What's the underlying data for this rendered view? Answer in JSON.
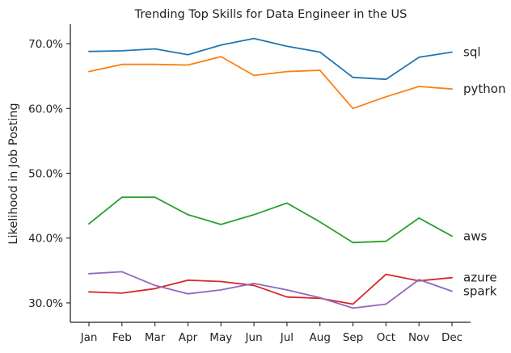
{
  "chart_data": {
    "type": "line",
    "title": "Trending Top Skills for Data Engineer in the US",
    "xlabel": "",
    "ylabel": "Likelihood in Job Posting",
    "categories": [
      "Jan",
      "Feb",
      "Mar",
      "Apr",
      "May",
      "Jun",
      "Jul",
      "Aug",
      "Sep",
      "Oct",
      "Nov",
      "Dec"
    ],
    "yticks": [
      30,
      40,
      50,
      60,
      70
    ],
    "ytick_labels": [
      "30.0%",
      "40.0%",
      "50.0%",
      "60.0%",
      "70.0%"
    ],
    "ylim": [
      27.0,
      73.0
    ],
    "grid": false,
    "legend": "labels at line ends (right)",
    "series": [
      {
        "name": "sql",
        "color": "#1f77b4",
        "values": [
          68.8,
          68.9,
          69.2,
          68.3,
          69.8,
          70.8,
          69.6,
          68.7,
          64.8,
          64.5,
          67.9,
          68.7
        ]
      },
      {
        "name": "python",
        "color": "#ff7f0e",
        "values": [
          65.7,
          66.8,
          66.8,
          66.7,
          68.0,
          65.1,
          65.7,
          65.9,
          60.0,
          61.8,
          63.4,
          63.0
        ]
      },
      {
        "name": "aws",
        "color": "#2ca02c",
        "values": [
          42.2,
          46.3,
          46.3,
          43.6,
          42.1,
          43.6,
          45.4,
          42.5,
          39.3,
          39.5,
          43.1,
          40.3
        ]
      },
      {
        "name": "azure",
        "color": "#d62728",
        "values": [
          31.7,
          31.5,
          32.2,
          33.5,
          33.3,
          32.7,
          30.9,
          30.7,
          29.8,
          34.4,
          33.4,
          33.9
        ]
      },
      {
        "name": "spark",
        "color": "#9467bd",
        "values": [
          34.5,
          34.8,
          32.7,
          31.4,
          32.0,
          33.0,
          32.0,
          30.8,
          29.2,
          29.8,
          33.6,
          31.8
        ]
      }
    ]
  }
}
